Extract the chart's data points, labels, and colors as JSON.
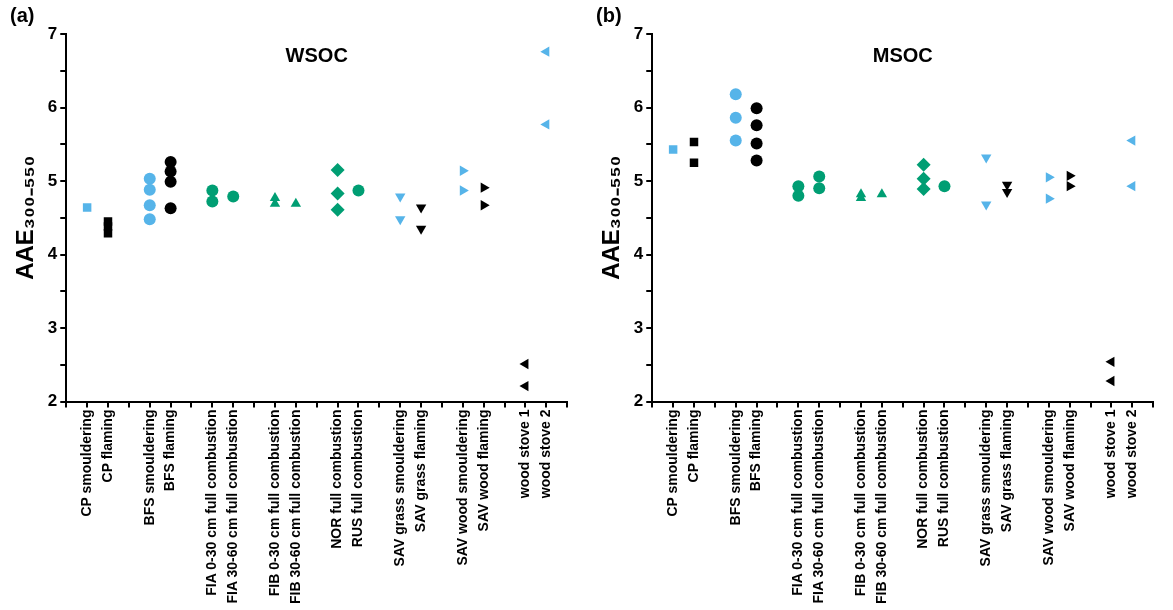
{
  "chart_data": [
    {
      "type": "scatter",
      "title": "WSOC",
      "ylabel": "AAE₃₀₀₋₅₅₀",
      "annotations": [
        "(a)"
      ],
      "legend": false,
      "grid": false,
      "categories": [
        "CP smouldering",
        "CP flaming",
        null,
        "BFS smouldering",
        "BFS flaming",
        null,
        "FIA 0-30 cm full combustion",
        "FIA 30-60 cm full combustion",
        null,
        "FIB 0-30 cm full combustion",
        "FIB 30-60 cm full combustion",
        null,
        "NOR full combustion",
        "RUS full combustion",
        null,
        "SAV grass smouldering",
        "SAV grass flaming",
        null,
        "SAV wood smouldering",
        "SAV wood flaming",
        null,
        "wood stove 1",
        "wood stove 2"
      ],
      "ylim": [
        2,
        7
      ],
      "yticks": [
        2,
        {
          "value": 2.5,
          "label": null
        },
        3,
        {
          "value": 3.5,
          "label": null
        },
        4,
        {
          "value": 4.5,
          "label": null
        },
        5,
        {
          "value": 5.5,
          "label": null
        },
        6,
        {
          "value": 6.5,
          "label": null
        },
        7
      ],
      "series": [
        {
          "color": "#56b4e9",
          "marker": "square",
          "x": [
            "CP smouldering"
          ],
          "values": [
            4.64
          ]
        },
        {
          "color": "#000000",
          "marker": "square",
          "x": [
            "CP flaming",
            "CP flaming",
            "CP flaming"
          ],
          "values": [
            4.45,
            4.38,
            4.29
          ]
        },
        {
          "color": "#56b4e9",
          "marker": "circle",
          "x": [
            "BFS smouldering",
            "BFS smouldering",
            "BFS smouldering",
            "BFS smouldering"
          ],
          "values": [
            5.03,
            4.88,
            4.67,
            4.48
          ]
        },
        {
          "color": "#000000",
          "marker": "circle",
          "x": [
            "BFS flaming",
            "BFS flaming",
            "BFS flaming",
            "BFS flaming"
          ],
          "values": [
            5.26,
            5.13,
            4.99,
            4.63
          ]
        },
        {
          "color": "#009e73",
          "marker": "circle",
          "x": [
            "FIA 0-30 cm full combustion",
            "FIA 0-30 cm full combustion"
          ],
          "values": [
            4.87,
            4.72
          ]
        },
        {
          "color": "#009e73",
          "marker": "circle",
          "x": [
            "FIA 30-60 cm full combustion"
          ],
          "values": [
            4.79
          ]
        },
        {
          "color": "#009e73",
          "marker": "triangle",
          "x": [
            "FIB 0-30 cm full combustion",
            "FIB 0-30 cm full combustion"
          ],
          "values": [
            4.77,
            4.69
          ]
        },
        {
          "color": "#009e73",
          "marker": "triangle",
          "x": [
            "FIB 30-60 cm full combustion"
          ],
          "values": [
            4.69
          ]
        },
        {
          "color": "#009e73",
          "marker": "diamond",
          "x": [
            "NOR full combustion",
            "NOR full combustion",
            "NOR full combustion"
          ],
          "values": [
            5.15,
            4.83,
            4.61
          ]
        },
        {
          "color": "#009e73",
          "marker": "circle",
          "x": [
            "RUS full combustion"
          ],
          "values": [
            4.87
          ]
        },
        {
          "color": "#56b4e9",
          "marker": "triangle-down",
          "x": [
            "SAV grass smouldering",
            "SAV grass smouldering"
          ],
          "values": [
            4.79,
            4.48
          ]
        },
        {
          "color": "#000000",
          "marker": "triangle-down",
          "x": [
            "SAV grass flaming",
            "SAV grass flaming"
          ],
          "values": [
            4.64,
            4.35
          ]
        },
        {
          "color": "#56b4e9",
          "marker": "triangle-right",
          "x": [
            "SAV wood smouldering",
            "SAV wood smouldering"
          ],
          "values": [
            5.14,
            4.87
          ]
        },
        {
          "color": "#000000",
          "marker": "triangle-right",
          "x": [
            "SAV wood flaming",
            "SAV wood flaming"
          ],
          "values": [
            4.91,
            4.67
          ]
        },
        {
          "color": "#000000",
          "marker": "triangle-left",
          "x": [
            "wood stove 1",
            "wood stove 1"
          ],
          "values": [
            2.51,
            2.21
          ]
        },
        {
          "color": "#56b4e9",
          "marker": "triangle-left",
          "x": [
            "wood stove 2",
            "wood stove 2"
          ],
          "values": [
            6.76,
            5.77
          ]
        }
      ]
    },
    {
      "type": "scatter",
      "title": "MSOC",
      "ylabel": "AAE₃₀₀₋₅₅₀",
      "annotations": [
        "(b)"
      ],
      "legend": false,
      "grid": false,
      "categories": [
        "CP smouldering",
        "CP flaming",
        null,
        "BFS smouldering",
        "BFS flaming",
        null,
        "FIA 0-30 cm full combustion",
        "FIA 30-60 cm full combustion",
        null,
        "FIB 0-30 cm full combustion",
        "FIB 30-60 cm full combustion",
        null,
        "NOR full combustion",
        "RUS full combustion",
        null,
        "SAV grass smouldering",
        "SAV grass flaming",
        null,
        "SAV wood smouldering",
        "SAV wood flaming",
        null,
        "wood stove 1",
        "wood stove 2"
      ],
      "ylim": [
        2,
        7
      ],
      "yticks": [
        2,
        {
          "value": 2.5,
          "label": null
        },
        3,
        {
          "value": 3.5,
          "label": null
        },
        4,
        {
          "value": 4.5,
          "label": null
        },
        5,
        {
          "value": 5.5,
          "label": null
        },
        6,
        {
          "value": 6.5,
          "label": null
        },
        7
      ],
      "series": [
        {
          "color": "#56b4e9",
          "marker": "square",
          "x": [
            "CP smouldering"
          ],
          "values": [
            5.43
          ]
        },
        {
          "color": "#000000",
          "marker": "square",
          "x": [
            "CP flaming",
            "CP flaming"
          ],
          "values": [
            5.53,
            5.25
          ]
        },
        {
          "color": "#56b4e9",
          "marker": "circle",
          "x": [
            "BFS smouldering",
            "BFS smouldering",
            "BFS smouldering"
          ],
          "values": [
            6.18,
            5.86,
            5.55
          ]
        },
        {
          "color": "#000000",
          "marker": "circle",
          "x": [
            "BFS flaming",
            "BFS flaming",
            "BFS flaming",
            "BFS flaming"
          ],
          "values": [
            5.99,
            5.76,
            5.51,
            5.28
          ]
        },
        {
          "color": "#009e73",
          "marker": "circle",
          "x": [
            "FIA 0-30 cm full combustion",
            "FIA 0-30 cm full combustion"
          ],
          "values": [
            4.93,
            4.8
          ]
        },
        {
          "color": "#009e73",
          "marker": "circle",
          "x": [
            "FIA 30-60 cm full combustion",
            "FIA 30-60 cm full combustion"
          ],
          "values": [
            5.06,
            4.9
          ]
        },
        {
          "color": "#009e73",
          "marker": "triangle",
          "x": [
            "FIB 0-30 cm full combustion",
            "FIB 0-30 cm full combustion"
          ],
          "values": [
            4.82,
            4.77
          ]
        },
        {
          "color": "#009e73",
          "marker": "triangle",
          "x": [
            "FIB 30-60 cm full combustion"
          ],
          "values": [
            4.82
          ]
        },
        {
          "color": "#009e73",
          "marker": "diamond",
          "x": [
            "NOR full combustion",
            "NOR full combustion",
            "NOR full combustion"
          ],
          "values": [
            5.22,
            5.03,
            4.89
          ]
        },
        {
          "color": "#009e73",
          "marker": "circle",
          "x": [
            "RUS full combustion"
          ],
          "values": [
            4.93
          ]
        },
        {
          "color": "#56b4e9",
          "marker": "triangle-down",
          "x": [
            "SAV grass smouldering",
            "SAV grass smouldering"
          ],
          "values": [
            5.32,
            4.68
          ]
        },
        {
          "color": "#000000",
          "marker": "triangle-down",
          "x": [
            "SAV grass flaming",
            "SAV grass flaming"
          ],
          "values": [
            4.95,
            4.85
          ]
        },
        {
          "color": "#56b4e9",
          "marker": "triangle-right",
          "x": [
            "SAV wood smouldering",
            "SAV wood smouldering"
          ],
          "values": [
            5.05,
            4.76
          ]
        },
        {
          "color": "#000000",
          "marker": "triangle-right",
          "x": [
            "SAV wood flaming",
            "SAV wood flaming"
          ],
          "values": [
            5.07,
            4.93
          ]
        },
        {
          "color": "#000000",
          "marker": "triangle-left",
          "x": [
            "wood stove 1",
            "wood stove 1"
          ],
          "values": [
            2.54,
            2.28
          ]
        },
        {
          "color": "#56b4e9",
          "marker": "triangle-left",
          "x": [
            "wood stove 2",
            "wood stove 2"
          ],
          "values": [
            5.55,
            4.93
          ]
        }
      ]
    }
  ]
}
